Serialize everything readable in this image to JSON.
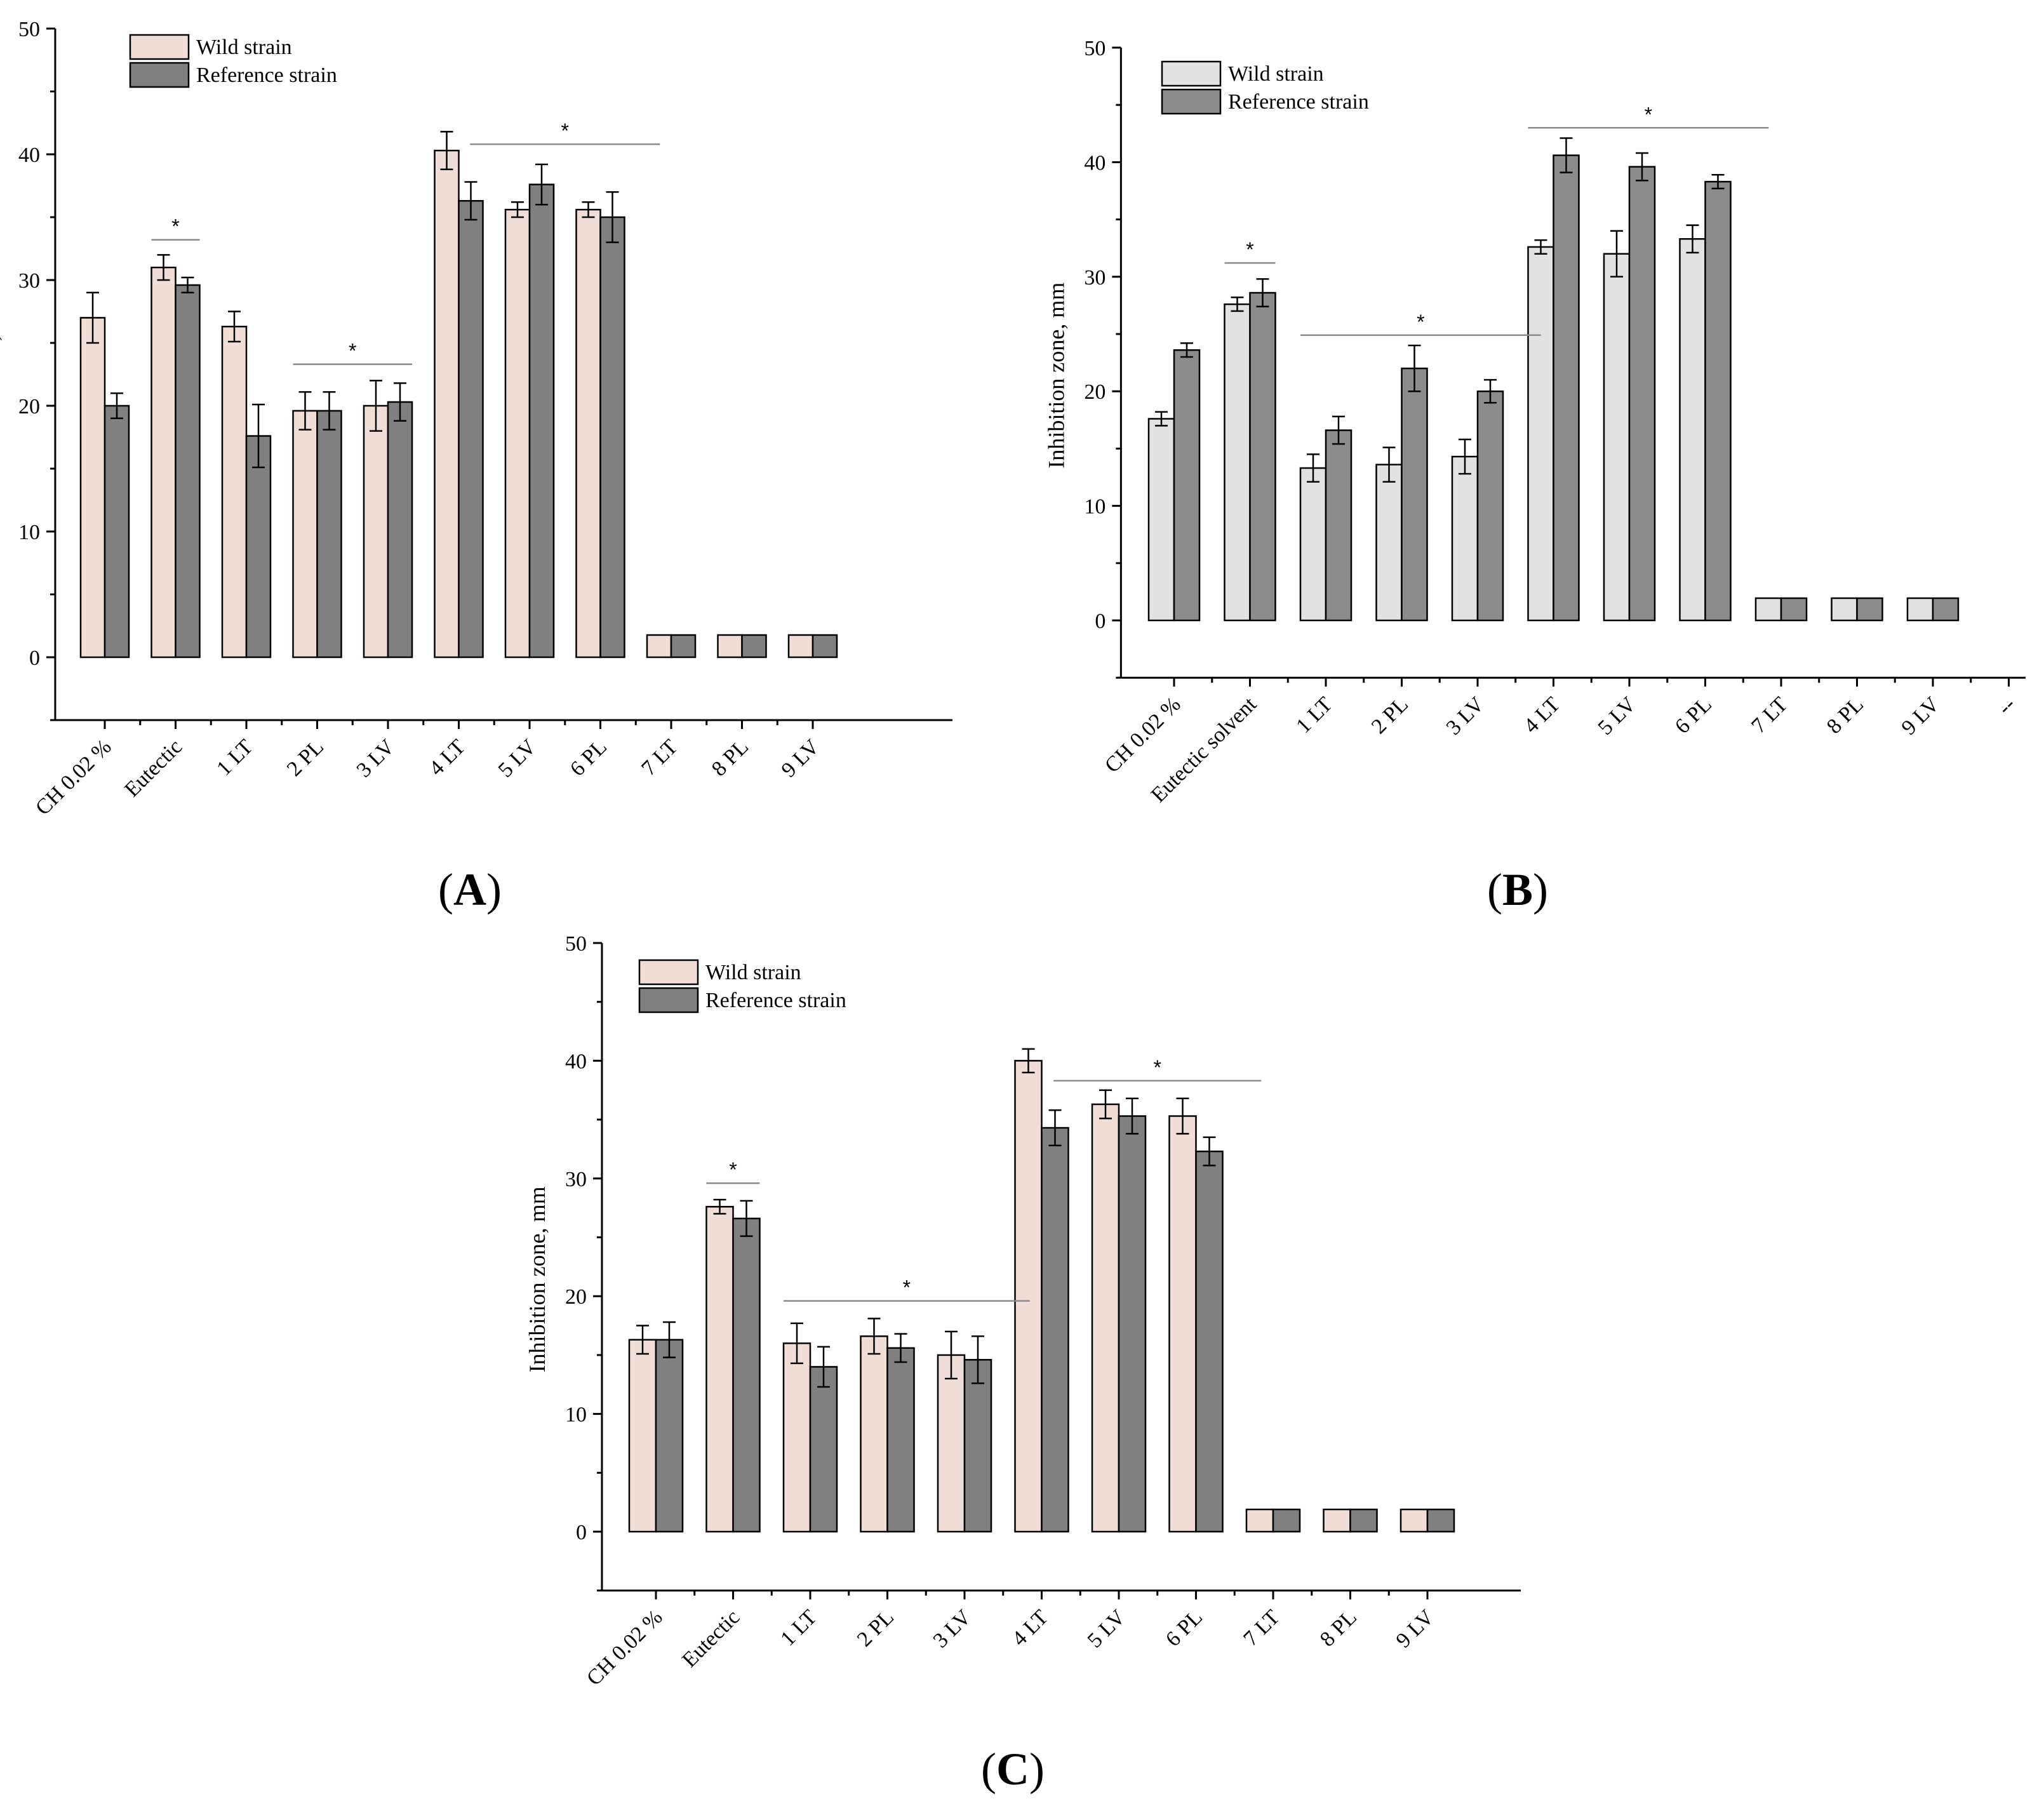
{
  "chart_data": [
    {
      "panel": "A",
      "type": "bar",
      "ylabel": "Inhibition zone, mm",
      "ylim": [
        -5,
        50
      ],
      "yticks": [
        0,
        10,
        20,
        30,
        40,
        50
      ],
      "categories": [
        "CH 0.02 %",
        "Eutectic",
        "1 LT",
        "2 PL",
        "3 LV",
        "4 LT",
        "5 LV",
        "6 PL",
        "7 LT",
        "8 PL",
        "9 LV"
      ],
      "series": [
        {
          "name": "Wild strain",
          "color": "#f0ddd5",
          "values": [
            27,
            31,
            26.3,
            19.6,
            20,
            40.3,
            35.6,
            35.6,
            0,
            0,
            0
          ],
          "errors": [
            2,
            1,
            1.2,
            1.5,
            2,
            1.5,
            0.6,
            0.6,
            0,
            0,
            0
          ]
        },
        {
          "name": "Reference strain",
          "color": "#808080",
          "values": [
            20,
            29.6,
            17.6,
            19.6,
            20.3,
            36.3,
            37.6,
            35,
            0,
            0,
            0
          ],
          "errors": [
            1,
            0.6,
            2.5,
            1.5,
            1.5,
            1.5,
            1.6,
            2,
            0,
            0,
            0
          ]
        }
      ],
      "significance": [
        {
          "from": 1,
          "to": 1,
          "y": 33.2,
          "label": "*"
        },
        {
          "from": 3,
          "to": 4,
          "y": 23.3,
          "label": "*"
        },
        {
          "from": 5.5,
          "to": 7.5,
          "y": 40.8,
          "label": "*"
        }
      ],
      "panel_label": "A"
    },
    {
      "panel": "B",
      "type": "bar",
      "ylabel": "Inhibition zone, mm",
      "ylim": [
        -5,
        50
      ],
      "yticks": [
        0,
        10,
        20,
        30,
        40,
        50
      ],
      "categories": [
        "CH 0.02 %",
        "Eutectic solvent",
        "1 LT",
        "2 PL",
        "3 LV",
        "4 LT",
        "5 LV",
        "6 PL",
        "7 LT",
        "8 PL",
        "9 LV",
        "--"
      ],
      "series": [
        {
          "name": "Wild strain",
          "color": "#e2e2e2",
          "values": [
            17.6,
            27.6,
            13.3,
            13.6,
            14.3,
            32.6,
            32,
            33.3,
            0,
            0,
            0,
            null
          ],
          "errors": [
            0.6,
            0.6,
            1.2,
            1.5,
            1.5,
            0.6,
            2,
            1.2,
            0,
            0,
            0,
            null
          ]
        },
        {
          "name": "Reference strain",
          "color": "#8c8c8c",
          "values": [
            23.6,
            28.6,
            16.6,
            22,
            20,
            40.6,
            39.6,
            38.3,
            0,
            0,
            0,
            null
          ],
          "errors": [
            0.6,
            1.2,
            1.2,
            2,
            1,
            1.5,
            1.2,
            0.6,
            0,
            0,
            0,
            null
          ]
        }
      ],
      "significance": [
        {
          "from": 1,
          "to": 1,
          "y": 31.2,
          "label": "*"
        },
        {
          "from": 2,
          "to": 4.5,
          "y": 24.9,
          "label": "*"
        },
        {
          "from": 5,
          "to": 7.5,
          "y": 43,
          "label": "*"
        }
      ],
      "panel_label": "B"
    },
    {
      "panel": "C",
      "type": "bar",
      "ylabel": "Inhibition zone, mm",
      "ylim": [
        -5,
        50
      ],
      "yticks": [
        0,
        10,
        20,
        30,
        40,
        50
      ],
      "categories": [
        "CH 0.02 %",
        "Eutectic",
        "1 LT",
        "2 PL",
        "3 LV",
        "4 LT",
        "5 LV",
        "6 PL",
        "7 LT",
        "8 PL",
        "9 LV"
      ],
      "series": [
        {
          "name": "Wild strain",
          "color": "#f0ddd5",
          "values": [
            16.3,
            27.6,
            16,
            16.6,
            15,
            40,
            36.3,
            35.3,
            0,
            0,
            0
          ],
          "errors": [
            1.2,
            0.6,
            1.7,
            1.5,
            2,
            1,
            1.2,
            1.5,
            0,
            0,
            0
          ]
        },
        {
          "name": "Reference strain",
          "color": "#808080",
          "values": [
            16.3,
            26.6,
            14,
            15.6,
            14.6,
            34.3,
            35.3,
            32.3,
            0,
            0,
            0
          ],
          "errors": [
            1.5,
            1.5,
            1.7,
            1.2,
            2,
            1.5,
            1.5,
            1.2,
            0,
            0,
            0
          ]
        }
      ],
      "significance": [
        {
          "from": 1,
          "to": 1,
          "y": 29.6,
          "label": "*"
        },
        {
          "from": 2,
          "to": 4.5,
          "y": 19.6,
          "label": "*"
        },
        {
          "from": 5.5,
          "to": 7.5,
          "y": 38.3,
          "label": "*"
        }
      ],
      "panel_label": "C"
    }
  ]
}
